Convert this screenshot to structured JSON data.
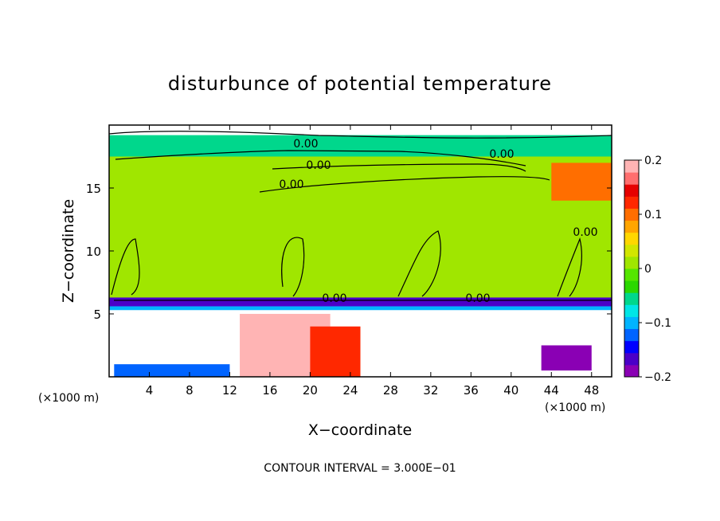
{
  "chart_data": {
    "type": "heatmap",
    "title": "disturbunce of potential temperature",
    "xlabel": "X−coordinate",
    "ylabel": "Z−coordinate",
    "x_unit_left": "(×1000 m)",
    "x_unit_right": "(×1000 m)",
    "xlim": [
      0,
      50
    ],
    "ylim": [
      0,
      20
    ],
    "x_ticks": [
      "4",
      "8",
      "12",
      "16",
      "20",
      "24",
      "28",
      "32",
      "36",
      "40",
      "44",
      "48"
    ],
    "x_tick_values": [
      4,
      8,
      12,
      16,
      20,
      24,
      28,
      32,
      36,
      40,
      44,
      48
    ],
    "y_ticks": [
      "5",
      "10",
      "15"
    ],
    "y_tick_values": [
      5,
      10,
      15
    ],
    "colorbar": {
      "vmin": -0.2,
      "vmax": 0.2,
      "tick_labels": [
        "0.2",
        "0.1",
        "0",
        "−0.1",
        "−0.2"
      ],
      "tick_values": [
        0.2,
        0.1,
        0,
        -0.1,
        -0.2
      ],
      "colors": [
        "#8a00b4",
        "#4b00c8",
        "#0000ff",
        "#0064ff",
        "#00b4ff",
        "#00e6e6",
        "#00d78c",
        "#2bd800",
        "#55e600",
        "#a0e600",
        "#d2e600",
        "#ffd700",
        "#ffa500",
        "#ff6e00",
        "#ff2800",
        "#e60000",
        "#ff6e6e",
        "#ffb4b4"
      ]
    },
    "contour_labels": [
      "0.00",
      "0.00",
      "0.00",
      "0.00",
      "0.00",
      "0.00",
      "0.00"
    ],
    "contour_interval_text": "CONTOUR INTERVAL = 3.000E−01",
    "background_value": 0.01,
    "regions": [
      {
        "x0": 0,
        "x1": 50,
        "z0": 17.5,
        "z1": 19.2,
        "value": -0.05
      },
      {
        "x0": 0,
        "x1": 50,
        "z0": 6.0,
        "z1": 17.5,
        "value": 0.02
      },
      {
        "x0": 0,
        "x1": 50,
        "z0": 5.6,
        "z1": 6.3,
        "value": -0.16
      },
      {
        "x0": 0,
        "x1": 50,
        "z0": 5.3,
        "z1": 5.6,
        "value": -0.09
      },
      {
        "x0": 13,
        "x1": 22,
        "z0": 0,
        "z1": 5.0,
        "value": 0.2
      },
      {
        "x0": 20,
        "x1": 25,
        "z0": 0,
        "z1": 4.0,
        "value": 0.12
      },
      {
        "x0": 43,
        "x1": 48,
        "z0": 0.5,
        "z1": 2.5,
        "value": -0.2
      },
      {
        "x0": 0.5,
        "x1": 12,
        "z0": 0,
        "z1": 1.0,
        "value": -0.13
      },
      {
        "x0": 44,
        "x1": 50,
        "z0": 14,
        "z1": 17,
        "value": 0.1
      }
    ],
    "grid": false,
    "legend": "right"
  }
}
